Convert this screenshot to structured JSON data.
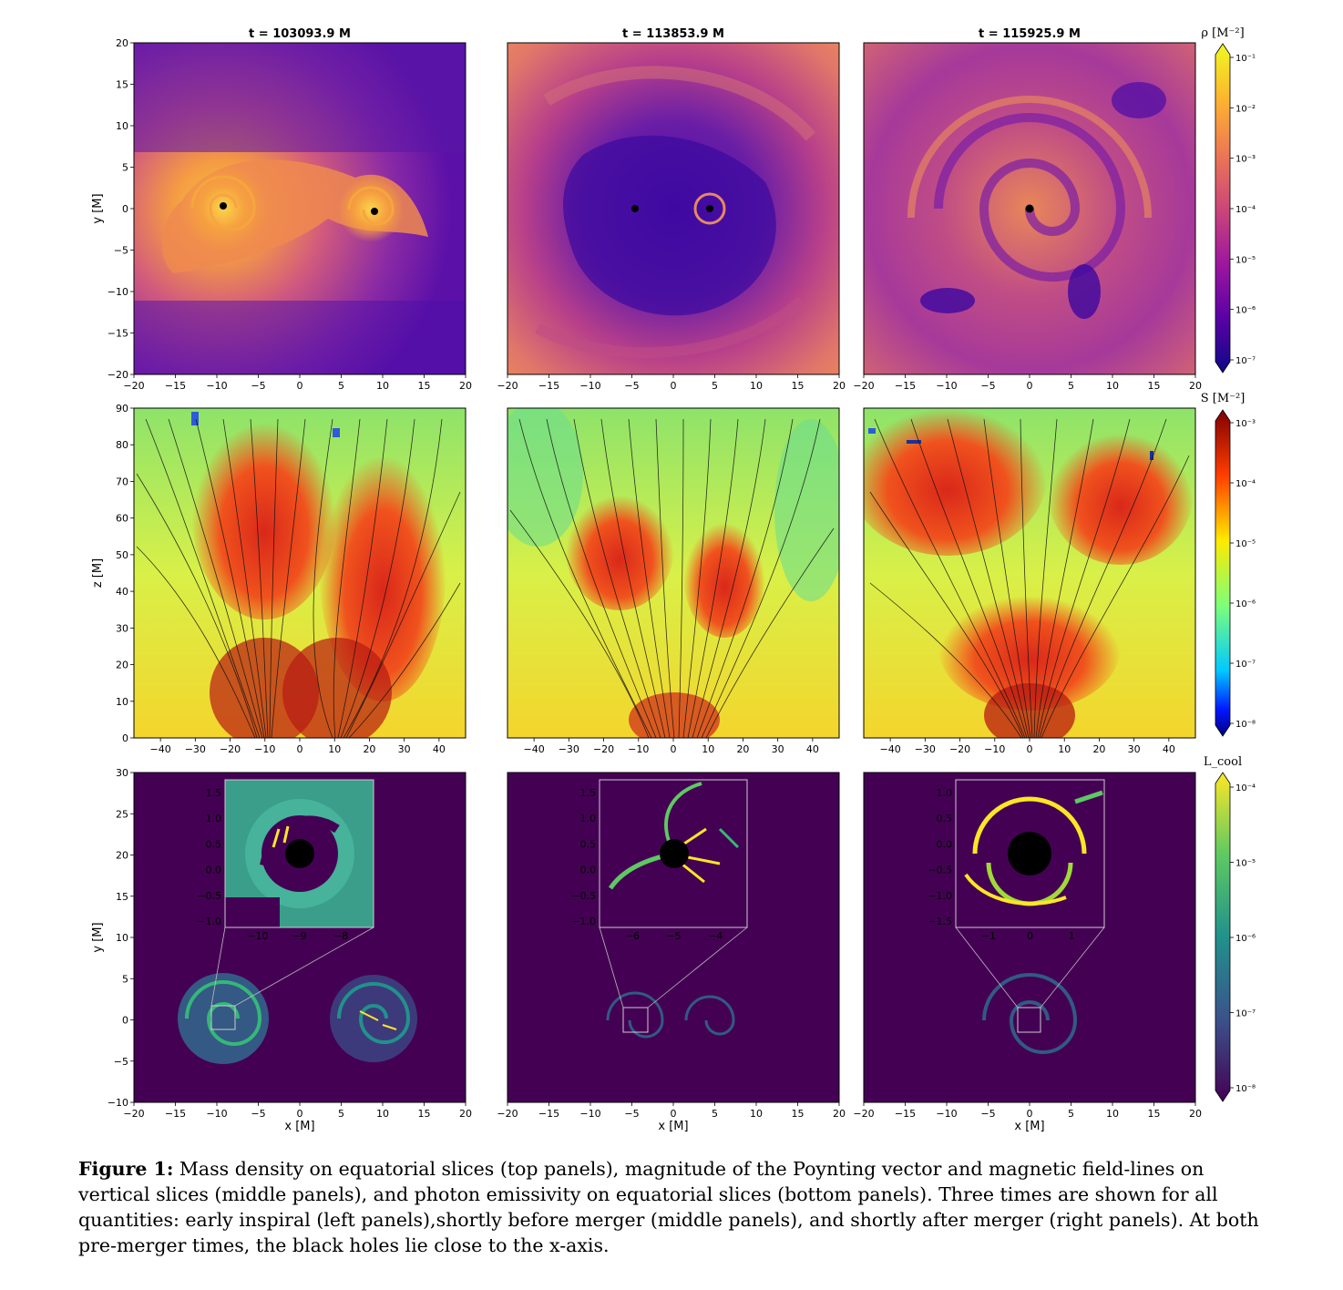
{
  "figure": {
    "panel_titles": [
      "t = 103093.9 M",
      "t = 113853.9 M",
      "t = 115925.9 M"
    ],
    "rows": [
      {
        "name": "density",
        "ylabel": "y [M]",
        "xticks": [
          "−20",
          "−15",
          "−10",
          "−5",
          "0",
          "5",
          "10",
          "15",
          "20"
        ],
        "yticks": [
          "20",
          "15",
          "10",
          "5",
          "0",
          "−5",
          "−10",
          "−15",
          "−20"
        ],
        "colorbar": {
          "label": "ρ [M⁻²]",
          "ticks": [
            "10⁻¹",
            "10⁻²",
            "10⁻³",
            "10⁻⁴",
            "10⁻⁵",
            "10⁻⁶",
            "10⁻⁷"
          ],
          "colors": [
            "#f0f921",
            "#fdb42f",
            "#ed7953",
            "#cc4778",
            "#9c179e",
            "#5c01a6",
            "#0d0887"
          ]
        }
      },
      {
        "name": "poynting",
        "ylabel": "z [M]",
        "xticks": [
          "−40",
          "−30",
          "−20",
          "−10",
          "0",
          "10",
          "20",
          "30",
          "40"
        ],
        "yticks": [
          "90",
          "80",
          "70",
          "60",
          "50",
          "40",
          "30",
          "20",
          "10",
          "0"
        ],
        "colorbar": {
          "label": "S [M⁻²]",
          "ticks": [
            "10⁻³",
            "10⁻⁴",
            "10⁻⁵",
            "10⁻⁶",
            "10⁻⁷",
            "10⁻⁸"
          ],
          "colors": [
            "#7f0000",
            "#ff3d00",
            "#ffea00",
            "#7dff7a",
            "#00c8ff",
            "#0016ff",
            "#00007f"
          ]
        }
      },
      {
        "name": "emissivity",
        "ylabel": "y [M]",
        "xlabel": "x [M]",
        "xticks": [
          "−20",
          "−15",
          "−10",
          "−5",
          "0",
          "5",
          "10",
          "15",
          "20"
        ],
        "yticks": [
          "30",
          "25",
          "20",
          "15",
          "10",
          "5",
          "0",
          "−5",
          "−10"
        ],
        "colorbar": {
          "label": "L_cool",
          "ticks": [
            "10⁻⁴",
            "10⁻⁵",
            "10⁻⁶",
            "10⁻⁷",
            "10⁻⁸"
          ],
          "colors": [
            "#fde725",
            "#5ec962",
            "#21918c",
            "#3b528b",
            "#440154"
          ]
        },
        "insets": [
          {
            "xticks": [
              "−10",
              "−9",
              "−8"
            ],
            "yticks": [
              "1.5",
              "1.0",
              "0.5",
              "0.0",
              "−0.5",
              "−1.0"
            ]
          },
          {
            "xticks": [
              "−6",
              "−5",
              "−4"
            ],
            "yticks": [
              "1.5",
              "1.0",
              "0.5",
              "0.0",
              "−0.5",
              "−1.0"
            ]
          },
          {
            "xticks": [
              "−1",
              "0",
              "1"
            ],
            "yticks": [
              "1.0",
              "0.5",
              "0.0",
              "−0.5",
              "−1.0",
              "−1.5"
            ]
          }
        ]
      }
    ]
  },
  "caption": {
    "label": "Figure 1:",
    "text": " Mass density on equatorial slices (top panels), magnitude of the Poynting vector and magnetic field-lines on vertical slices (middle panels), and photon emissivity on equatorial slices (bottom panels). Three times are shown for all quantities: early inspiral (left panels),shortly before merger (middle panels), and shortly after merger (right panels). At both pre-merger times, the black holes lie close to the x-axis."
  }
}
